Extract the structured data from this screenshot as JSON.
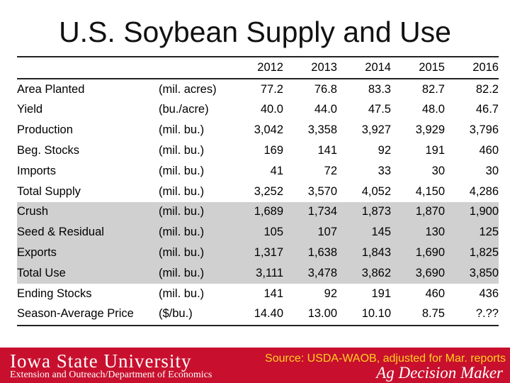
{
  "title": "U.S. Soybean Supply and Use",
  "years": [
    "2012",
    "2013",
    "2014",
    "2015",
    "2016"
  ],
  "rows": [
    {
      "label": "Area Planted",
      "unit": "(mil. acres)",
      "values": [
        "77.2",
        "76.8",
        "83.3",
        "82.7",
        "82.2"
      ],
      "shaded": false
    },
    {
      "label": "Yield",
      "unit": "(bu./acre)",
      "values": [
        "40.0",
        "44.0",
        "47.5",
        "48.0",
        "46.7"
      ],
      "shaded": false
    },
    {
      "label": "Production",
      "unit": "(mil. bu.)",
      "values": [
        "3,042",
        "3,358",
        "3,927",
        "3,929",
        "3,796"
      ],
      "shaded": false
    },
    {
      "label": "Beg. Stocks",
      "unit": "(mil. bu.)",
      "values": [
        "169",
        "141",
        "92",
        "191",
        "460"
      ],
      "shaded": false
    },
    {
      "label": "Imports",
      "unit": "(mil. bu.)",
      "values": [
        "41",
        "72",
        "33",
        "30",
        "30"
      ],
      "shaded": false
    },
    {
      "label": "Total Supply",
      "unit": "(mil. bu.)",
      "values": [
        "3,252",
        "3,570",
        "4,052",
        "4,150",
        "4,286"
      ],
      "shaded": false
    },
    {
      "label": "Crush",
      "unit": "(mil. bu.)",
      "values": [
        "1,689",
        "1,734",
        "1,873",
        "1,870",
        "1,900"
      ],
      "shaded": true
    },
    {
      "label": "Seed & Residual",
      "unit": "(mil. bu.)",
      "values": [
        "105",
        "107",
        "145",
        "130",
        "125"
      ],
      "shaded": true
    },
    {
      "label": "Exports",
      "unit": "(mil. bu.)",
      "values": [
        "1,317",
        "1,638",
        "1,843",
        "1,690",
        "1,825"
      ],
      "shaded": true
    },
    {
      "label": "Total Use",
      "unit": "(mil. bu.)",
      "values": [
        "3,111",
        "3,478",
        "3,862",
        "3,690",
        "3,850"
      ],
      "shaded": true
    },
    {
      "label": "Ending Stocks",
      "unit": "(mil. bu.)",
      "values": [
        "141",
        "92",
        "191",
        "460",
        "436"
      ],
      "shaded": false
    },
    {
      "label": "Season-Average Price",
      "unit": "($/bu.)",
      "values": [
        "14.40",
        "13.00",
        "10.10",
        "8.75",
        "?.??"
      ],
      "shaded": false
    }
  ],
  "footer": {
    "university": "Iowa State University",
    "department": "Extension and Outreach/Department of Economics",
    "source": "Source: USDA-WAOB, adjusted for Mar. reports",
    "brand": "Ag Decision Maker"
  },
  "colors": {
    "footer_bg": "#c8102e",
    "shade": "#d0d0d0",
    "source_text": "#ffd21f"
  }
}
